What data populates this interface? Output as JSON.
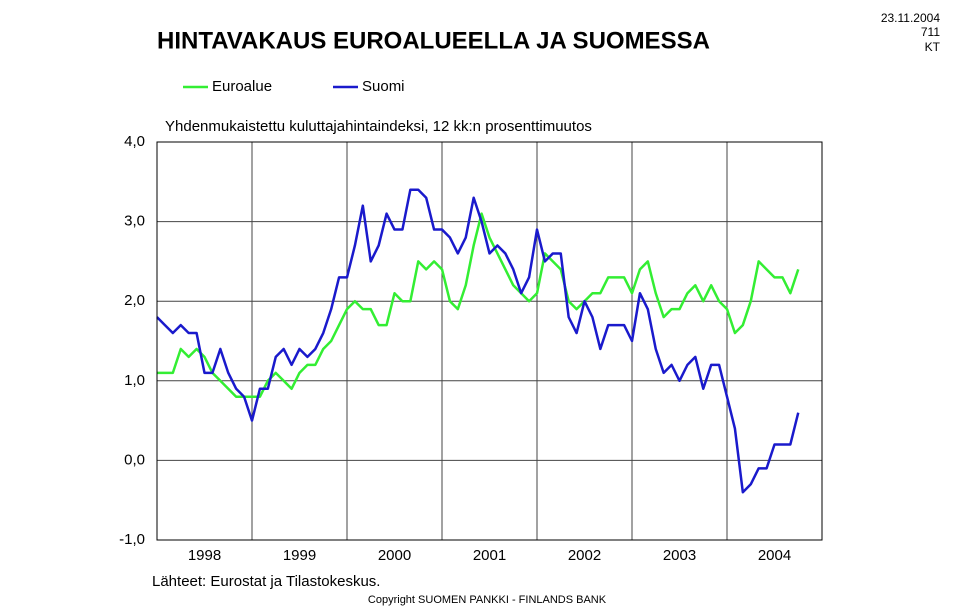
{
  "chart_data": {
    "type": "line",
    "title": "HINTAVAKAUS EUROALUEELLA JA SUOMESSA",
    "date": "23.11.2004",
    "number": "711",
    "department": "KT",
    "subtitle": "Yhdenmukaistettu kuluttajahintaindeksi, 12 kk:n prosenttimuutos",
    "source": "Lähteet: Eurostat ja Tilastokeskus.",
    "copyright": "Copyright SUOMEN PANKKI - FINLANDS BANK",
    "categories": [
      null,
      null,
      null,
      null,
      null,
      null,
      "1998",
      null,
      null,
      null,
      null,
      null,
      null,
      null,
      null,
      null,
      null,
      null,
      "1999",
      null,
      null,
      null,
      null,
      null,
      null,
      null,
      null,
      null,
      null,
      null,
      "2000",
      null,
      null,
      null,
      null,
      null,
      null,
      null,
      null,
      null,
      null,
      null,
      "2001",
      null,
      null,
      null,
      null,
      null,
      null,
      null,
      null,
      null,
      null,
      null,
      "2002",
      null,
      null,
      null,
      null,
      null,
      null,
      null,
      null,
      null,
      null,
      null,
      "2003",
      null,
      null,
      null,
      null,
      null,
      null,
      null,
      null,
      null,
      null,
      null,
      "2004",
      null,
      null,
      null
    ],
    "series": [
      {
        "name": "Euroalue",
        "color": "#33ee33",
        "values": [
          1.1,
          1.1,
          1.1,
          1.4,
          1.3,
          1.4,
          1.3,
          1.1,
          1.0,
          0.9,
          0.8,
          0.8,
          0.8,
          0.8,
          1.0,
          1.1,
          1.0,
          0.9,
          1.1,
          1.2,
          1.2,
          1.4,
          1.5,
          1.7,
          1.9,
          2.0,
          1.9,
          1.9,
          1.7,
          1.7,
          2.1,
          2.0,
          2.0,
          2.5,
          2.4,
          2.5,
          2.4,
          2.0,
          1.9,
          2.2,
          2.7,
          3.1,
          2.8,
          2.6,
          2.4,
          2.2,
          2.1,
          2.0,
          2.1,
          2.6,
          2.5,
          2.4,
          2.0,
          1.9,
          2.0,
          2.1,
          2.1,
          2.3,
          2.3,
          2.3,
          2.1,
          2.4,
          2.5,
          2.1,
          1.8,
          1.9,
          1.9,
          2.1,
          2.2,
          2.0,
          2.2,
          2.0,
          1.9,
          1.6,
          1.7,
          2.0,
          2.5,
          2.4,
          2.3,
          2.3,
          2.1,
          2.4
        ]
      },
      {
        "name": "Suomi",
        "color": "#1a1acc",
        "values": [
          1.8,
          1.7,
          1.6,
          1.7,
          1.6,
          1.6,
          1.1,
          1.1,
          1.4,
          1.1,
          0.9,
          0.8,
          0.5,
          0.9,
          0.9,
          1.3,
          1.4,
          1.2,
          1.4,
          1.3,
          1.4,
          1.6,
          1.9,
          2.3,
          2.3,
          2.7,
          3.2,
          2.5,
          2.7,
          3.1,
          2.9,
          2.9,
          3.4,
          3.4,
          3.3,
          2.9,
          2.9,
          2.8,
          2.6,
          2.8,
          3.3,
          3.0,
          2.6,
          2.7,
          2.6,
          2.4,
          2.1,
          2.3,
          2.9,
          2.5,
          2.6,
          2.6,
          1.8,
          1.6,
          2.0,
          1.8,
          1.4,
          1.7,
          1.7,
          1.7,
          1.5,
          2.1,
          1.9,
          1.4,
          1.1,
          1.2,
          1.0,
          1.2,
          1.3,
          0.9,
          1.2,
          1.2,
          0.8,
          0.4,
          -0.4,
          -0.3,
          -0.1,
          -0.1,
          0.2,
          0.2,
          0.2,
          0.6
        ]
      }
    ],
    "ylim": [
      -1,
      4
    ],
    "yticks": [
      {
        "value": -1,
        "label": "-1,0"
      },
      {
        "value": 0,
        "label": "0,0"
      },
      {
        "value": 1,
        "label": "1,0"
      },
      {
        "value": 2,
        "label": "2,0"
      },
      {
        "value": 3,
        "label": "3,0"
      },
      {
        "value": 4,
        "label": "4,0"
      }
    ],
    "grid": true
  }
}
